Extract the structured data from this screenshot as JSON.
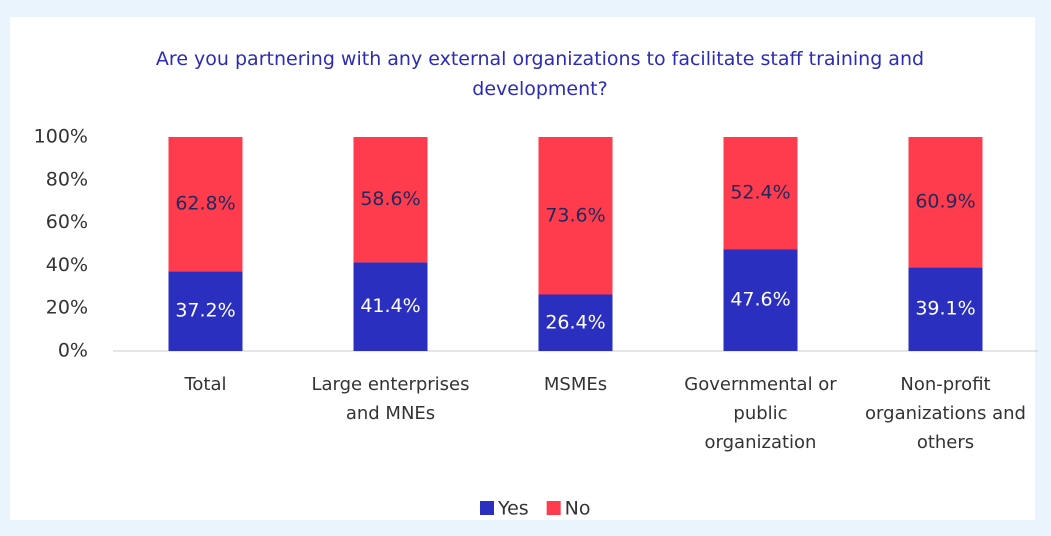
{
  "chart_data": {
    "type": "stacked_bar",
    "title": "Are you partnering with any external organizations to facilitate staff training and development?",
    "categories": [
      "Total",
      "Large enterprises and MNEs",
      "MSMEs",
      "Governmental or public organization",
      "Non-profit organizations and others"
    ],
    "series": [
      {
        "name": "Yes",
        "color": "#2a2fbf",
        "values": [
          37.2,
          41.4,
          26.4,
          47.6,
          39.1
        ],
        "value_labels": [
          "37.2%",
          "41.4%",
          "26.4%",
          "47.6%",
          "39.1%"
        ],
        "label_color": "#ffffff"
      },
      {
        "name": "No",
        "color": "#ff3b4e",
        "values": [
          62.8,
          58.6,
          73.6,
          52.4,
          60.9
        ],
        "value_labels": [
          "62.8%",
          "58.6%",
          "73.6%",
          "52.4%",
          "60.9%"
        ],
        "label_color": "#1f2a5a"
      }
    ],
    "ylim": [
      0,
      100
    ],
    "yticks": [
      {
        "value": 0,
        "label": "0%"
      },
      {
        "value": 20,
        "label": "20%"
      },
      {
        "value": 40,
        "label": "40%"
      },
      {
        "value": 60,
        "label": "60%"
      },
      {
        "value": 80,
        "label": "80%"
      },
      {
        "value": 100,
        "label": "100%"
      }
    ],
    "grid": false,
    "legend": "bottom"
  }
}
